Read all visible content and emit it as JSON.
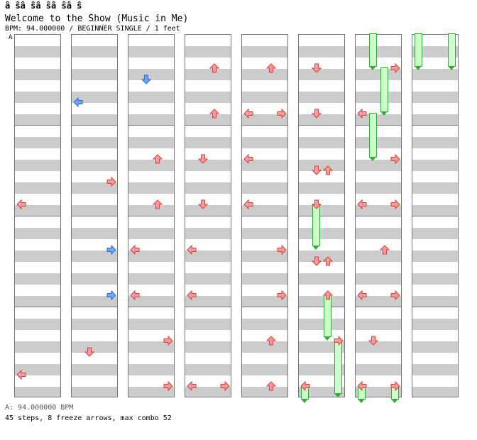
{
  "header": {
    "banner": "â ŝâ ŝâ ŝâ ŝâ ŝ",
    "title": "Welcome to the Show (Music in Me)",
    "meta": "BPM: 94.000000 / BEGINNER SINGLE / 1 feet",
    "section_mark": "A"
  },
  "footer": {
    "bpm_line": "A: 94.000000 BPM",
    "stats": "45 steps, 8 freeze arrows, max combo 52"
  },
  "colors": {
    "eighth_arrow": "#ff9a9a",
    "eighth_outline": "#cc4444",
    "offbeat_arrow": "#66aaff",
    "offbeat_outline": "#3366cc",
    "freeze_body": "#ccffcc",
    "freeze_outline": "#33aa33",
    "lane_stripe": "#cccccc"
  },
  "chart": {
    "columns": 8,
    "beats_per_column": 16,
    "beats_per_measure": 4,
    "arrows": [
      {
        "col": 0,
        "beat": 7.5,
        "dir": "left",
        "kind": "eighth"
      },
      {
        "col": 0,
        "beat": 15,
        "dir": "left",
        "kind": "eighth"
      },
      {
        "col": 1,
        "beat": 3,
        "dir": "left",
        "kind": "offbeat"
      },
      {
        "col": 1,
        "beat": 6.5,
        "dir": "right",
        "kind": "eighth"
      },
      {
        "col": 1,
        "beat": 9.5,
        "dir": "right",
        "kind": "offbeat"
      },
      {
        "col": 1,
        "beat": 11.5,
        "dir": "right",
        "kind": "offbeat"
      },
      {
        "col": 1,
        "beat": 14,
        "dir": "down",
        "kind": "eighth"
      },
      {
        "col": 2,
        "beat": 2,
        "dir": "down",
        "kind": "offbeat"
      },
      {
        "col": 2,
        "beat": 5.5,
        "dir": "up",
        "kind": "eighth"
      },
      {
        "col": 2,
        "beat": 7.5,
        "dir": "up",
        "kind": "eighth"
      },
      {
        "col": 2,
        "beat": 9.5,
        "dir": "left",
        "kind": "eighth"
      },
      {
        "col": 2,
        "beat": 11.5,
        "dir": "left",
        "kind": "eighth"
      },
      {
        "col": 2,
        "beat": 13.5,
        "dir": "right",
        "kind": "eighth"
      },
      {
        "col": 2,
        "beat": 15.5,
        "dir": "right",
        "kind": "eighth"
      },
      {
        "col": 3,
        "beat": 1.5,
        "dir": "up",
        "kind": "eighth"
      },
      {
        "col": 3,
        "beat": 3.5,
        "dir": "up",
        "kind": "eighth"
      },
      {
        "col": 3,
        "beat": 5.5,
        "dir": "down",
        "kind": "eighth"
      },
      {
        "col": 3,
        "beat": 7.5,
        "dir": "down",
        "kind": "eighth"
      },
      {
        "col": 3,
        "beat": 9.5,
        "dir": "left",
        "kind": "eighth"
      },
      {
        "col": 3,
        "beat": 11.5,
        "dir": "left",
        "kind": "eighth"
      },
      {
        "col": 3,
        "beat": 15.5,
        "dir": "left",
        "kind": "eighth"
      },
      {
        "col": 3,
        "beat": 15.5,
        "dir": "right",
        "kind": "eighth"
      },
      {
        "col": 4,
        "beat": 1.5,
        "dir": "up",
        "kind": "eighth"
      },
      {
        "col": 4,
        "beat": 3.5,
        "dir": "left",
        "kind": "eighth"
      },
      {
        "col": 4,
        "beat": 3.5,
        "dir": "right",
        "kind": "eighth"
      },
      {
        "col": 4,
        "beat": 5.5,
        "dir": "left",
        "kind": "eighth"
      },
      {
        "col": 4,
        "beat": 7.5,
        "dir": "left",
        "kind": "eighth"
      },
      {
        "col": 4,
        "beat": 9.5,
        "dir": "right",
        "kind": "eighth"
      },
      {
        "col": 4,
        "beat": 11.5,
        "dir": "right",
        "kind": "eighth"
      },
      {
        "col": 4,
        "beat": 13.5,
        "dir": "up",
        "kind": "eighth"
      },
      {
        "col": 4,
        "beat": 15.5,
        "dir": "up",
        "kind": "eighth"
      },
      {
        "col": 5,
        "beat": 1.5,
        "dir": "down",
        "kind": "eighth"
      },
      {
        "col": 5,
        "beat": 3.5,
        "dir": "down",
        "kind": "eighth"
      },
      {
        "col": 5,
        "beat": 6,
        "dir": "down",
        "kind": "eighth"
      },
      {
        "col": 5,
        "beat": 6,
        "dir": "up",
        "kind": "eighth"
      },
      {
        "col": 5,
        "beat": 7.5,
        "dir": "down",
        "kind": "eighth"
      },
      {
        "col": 5,
        "beat": 10,
        "dir": "down",
        "kind": "eighth"
      },
      {
        "col": 5,
        "beat": 10,
        "dir": "up",
        "kind": "eighth"
      },
      {
        "col": 5,
        "beat": 11.5,
        "dir": "up",
        "kind": "eighth"
      },
      {
        "col": 5,
        "beat": 13.5,
        "dir": "right",
        "kind": "eighth"
      },
      {
        "col": 5,
        "beat": 15.5,
        "dir": "left",
        "kind": "eighth"
      },
      {
        "col": 6,
        "beat": 1.5,
        "dir": "right",
        "kind": "eighth"
      },
      {
        "col": 6,
        "beat": 3.5,
        "dir": "left",
        "kind": "eighth"
      },
      {
        "col": 6,
        "beat": 5.5,
        "dir": "right",
        "kind": "eighth"
      },
      {
        "col": 6,
        "beat": 7.5,
        "dir": "left",
        "kind": "eighth"
      },
      {
        "col": 6,
        "beat": 7.5,
        "dir": "right",
        "kind": "eighth"
      },
      {
        "col": 6,
        "beat": 9.5,
        "dir": "up",
        "kind": "eighth"
      },
      {
        "col": 6,
        "beat": 11.5,
        "dir": "left",
        "kind": "eighth"
      },
      {
        "col": 6,
        "beat": 11.5,
        "dir": "right",
        "kind": "eighth"
      },
      {
        "col": 6,
        "beat": 13.5,
        "dir": "down",
        "kind": "eighth"
      },
      {
        "col": 6,
        "beat": 15.5,
        "dir": "left",
        "kind": "eighth"
      },
      {
        "col": 6,
        "beat": 15.5,
        "dir": "right",
        "kind": "eighth"
      }
    ],
    "freezes": [
      {
        "col": 5,
        "lane": 1,
        "start_beat": 7.5,
        "end_beat": 9.5
      },
      {
        "col": 5,
        "lane": 2,
        "start_beat": 11.5,
        "end_beat": 13.5
      },
      {
        "col": 5,
        "lane": 3,
        "start_beat": 13.5,
        "end_beat": 16.0
      },
      {
        "col": 5,
        "lane": 0,
        "start_beat": 15.5,
        "end_beat": 16.25
      },
      {
        "col": 6,
        "lane": 1,
        "start_beat": 0,
        "end_beat": 1.6
      },
      {
        "col": 6,
        "lane": 2,
        "start_beat": 1.5,
        "end_beat": 3.6
      },
      {
        "col": 6,
        "lane": 1,
        "start_beat": 3.5,
        "end_beat": 5.6
      },
      {
        "col": 6,
        "lane": 0,
        "start_beat": 15.5,
        "end_beat": 16.25
      },
      {
        "col": 6,
        "lane": 3,
        "start_beat": 15.5,
        "end_beat": 16.25
      },
      {
        "col": 7,
        "lane": 0,
        "start_beat": 0,
        "end_beat": 1.6
      },
      {
        "col": 7,
        "lane": 3,
        "start_beat": 0,
        "end_beat": 1.6
      }
    ]
  }
}
